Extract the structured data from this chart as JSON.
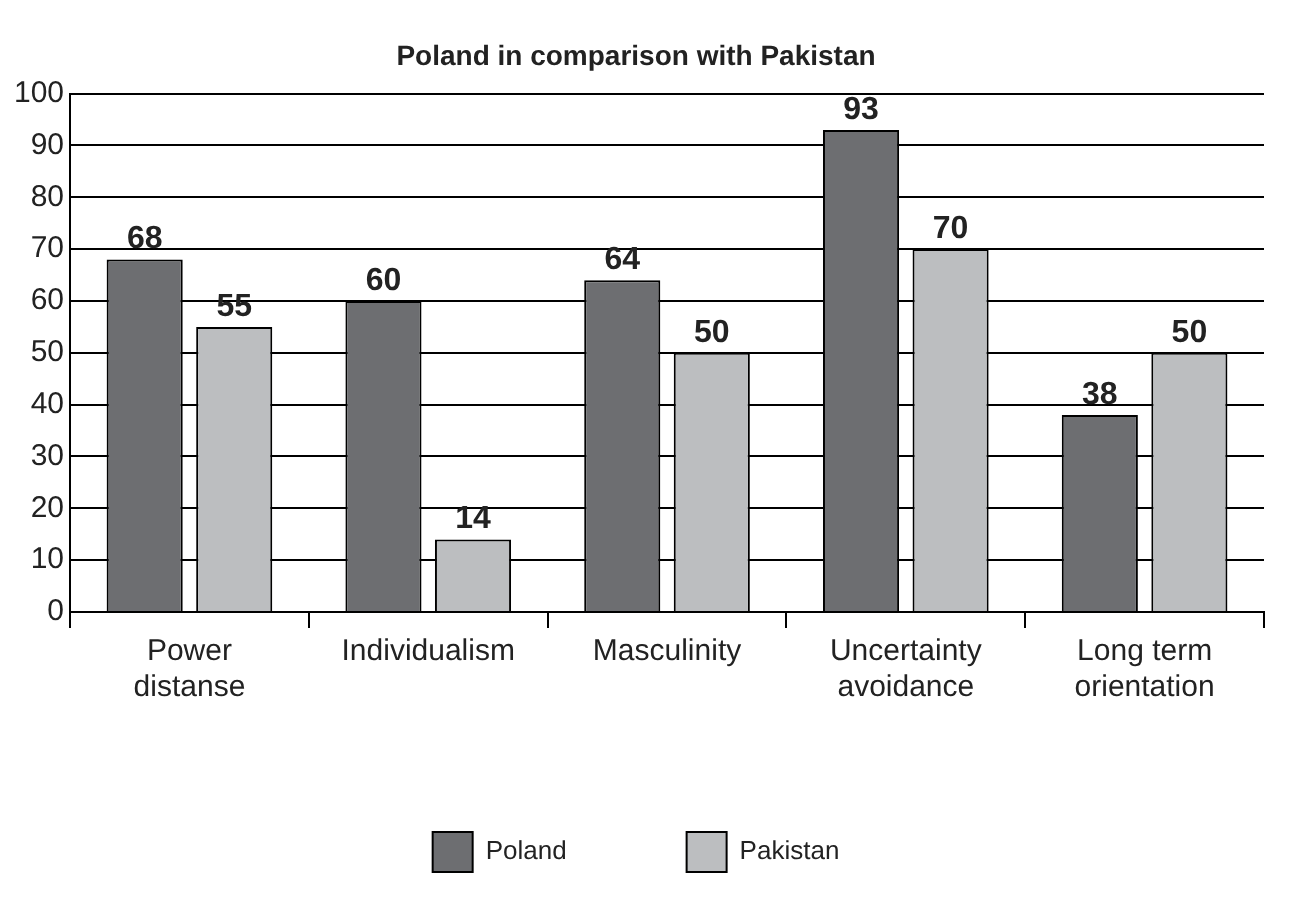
{
  "chart_data": {
    "type": "bar",
    "title": "Poland in comparison with Pakistan",
    "categories": [
      "Power distanse",
      "Individualism",
      "Masculinity",
      "Uncertainty avoidance",
      "Long term orientation"
    ],
    "series": [
      {
        "name": "Poland",
        "color": "#6d6e71",
        "values": [
          68,
          60,
          64,
          93,
          38
        ]
      },
      {
        "name": "Pakistan",
        "color": "#bcbec0",
        "values": [
          55,
          14,
          50,
          70,
          50
        ]
      }
    ],
    "ylim": [
      0,
      100
    ],
    "yticks": [
      0,
      10,
      20,
      30,
      40,
      50,
      60,
      70,
      80,
      90,
      100
    ],
    "grid": "y",
    "legend": "bottom",
    "data_labels": true
  }
}
